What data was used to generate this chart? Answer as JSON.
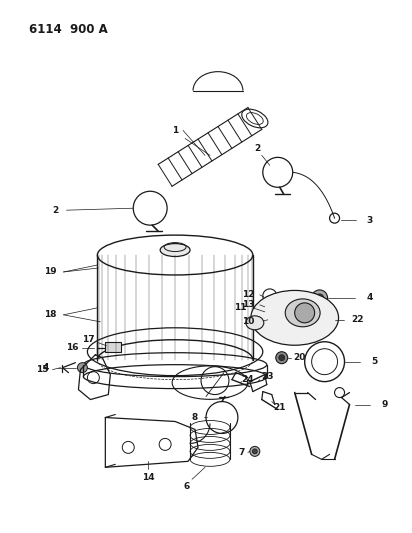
{
  "title": "6114 900 A",
  "bg_color": "#ffffff",
  "lc": "#1a1a1a",
  "figsize": [
    4.12,
    5.33
  ],
  "dpi": 100
}
